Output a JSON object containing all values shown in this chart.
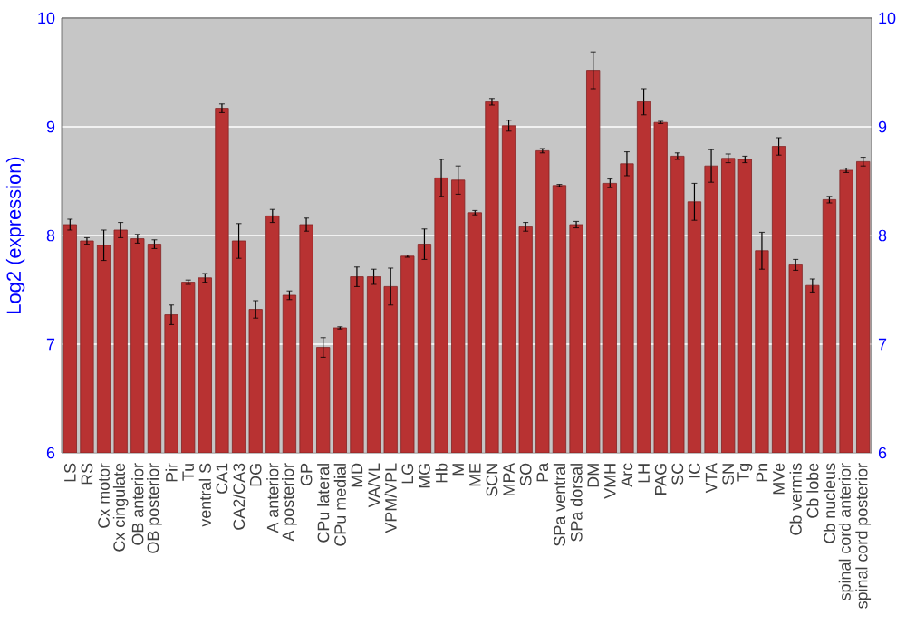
{
  "chart_data": {
    "type": "bar",
    "ylabel": "Log2 (expression)",
    "categories": [
      "LS",
      "RS",
      "Cx motor",
      "Cx cingulate",
      "OB anterior",
      "OB posterior",
      "Pir",
      "Tu",
      "ventral S",
      "CA1",
      "CA2/CA3",
      "DG",
      "A anterior",
      "A posterior",
      "GP",
      "CPu lateral",
      "CPu medial",
      "MD",
      "VA/VL",
      "VPM/VPL",
      "LG",
      "MG",
      "Hb",
      "M",
      "ME",
      "SCN",
      "MPA",
      "SO",
      "Pa",
      "SPa ventral",
      "SPa dorsal",
      "DM",
      "VMH",
      "Arc",
      "LH",
      "PAG",
      "SC",
      "IC",
      "VTA",
      "SN",
      "Tg",
      "Pn",
      "MVe",
      "Cb vermis",
      "Cb lobe",
      "Cb nucleus",
      "spinal cord anterior",
      "spinal cord posterior"
    ],
    "values": [
      8.1,
      7.95,
      7.91,
      8.05,
      7.97,
      7.92,
      7.27,
      7.57,
      7.61,
      9.17,
      7.95,
      7.32,
      8.18,
      7.45,
      8.1,
      6.97,
      7.15,
      7.62,
      7.62,
      7.53,
      7.81,
      7.92,
      8.53,
      8.51,
      8.21,
      9.23,
      9.01,
      8.08,
      8.78,
      8.46,
      8.1,
      9.52,
      8.48,
      8.66,
      9.23,
      9.04,
      8.73,
      8.31,
      8.64,
      8.71,
      8.7,
      7.86,
      8.82,
      7.73,
      7.54,
      8.33,
      8.6,
      8.68
    ],
    "errors": [
      0.05,
      0.03,
      0.14,
      0.07,
      0.04,
      0.04,
      0.09,
      0.02,
      0.04,
      0.04,
      0.16,
      0.08,
      0.06,
      0.04,
      0.06,
      0.09,
      0.01,
      0.09,
      0.07,
      0.17,
      0.01,
      0.14,
      0.17,
      0.13,
      0.02,
      0.03,
      0.05,
      0.04,
      0.02,
      0.01,
      0.03,
      0.17,
      0.04,
      0.11,
      0.12,
      0.01,
      0.03,
      0.17,
      0.15,
      0.04,
      0.03,
      0.17,
      0.08,
      0.05,
      0.06,
      0.03,
      0.02,
      0.04
    ],
    "color": "#b83232",
    "ylim": [
      6,
      10
    ],
    "yticks": [
      6,
      7,
      8,
      9,
      10
    ],
    "y2lim": [
      6,
      10
    ],
    "y2ticks": [
      6,
      7,
      8,
      9,
      10
    ],
    "grid": "y"
  }
}
